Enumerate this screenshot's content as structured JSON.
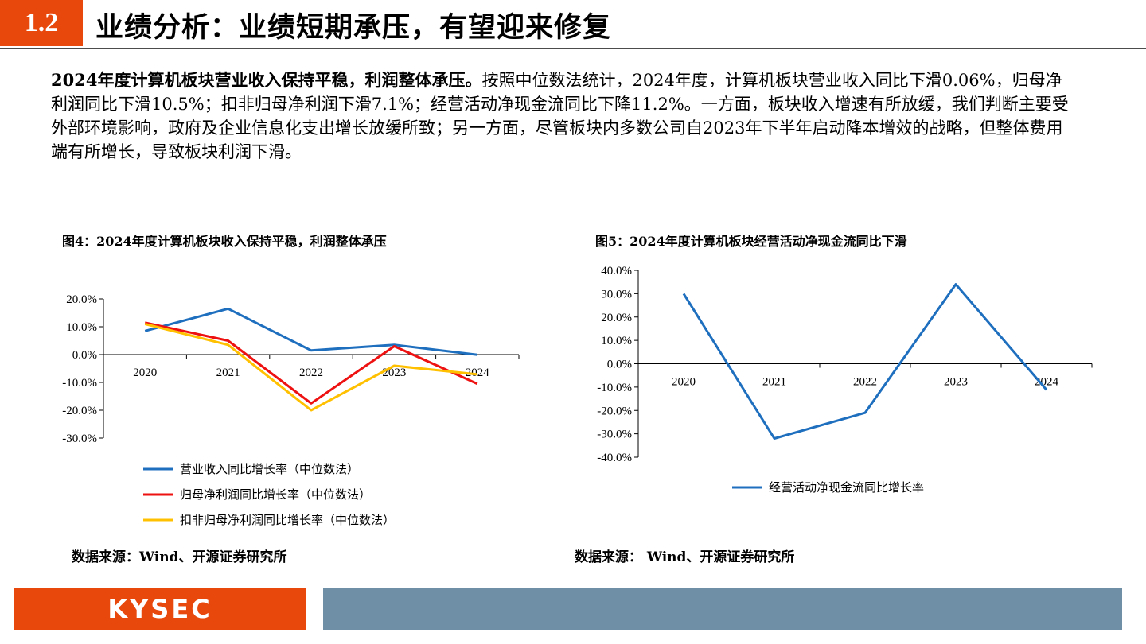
{
  "header": {
    "section_number": "1.2",
    "title": "业绩分析：业绩短期承压，有望迎来修复"
  },
  "summary": {
    "bold": "2024年度计算机板块营业收入保持平稳，利润整体承压。",
    "text": "按照中位数法统计，2024年度，计算机板块营业收入同比下滑0.06%，归母净利润同比下滑10.5%；扣非归母净利润下滑7.1%；经营活动净现金流同比下降11.2%。一方面，板块收入增速有所放缓，我们判断主要受外部环境影响，政府及企业信息化支出增长放缓所致；另一方面，尽管板块内多数公司自2023年下半年启动降本增效的战略，但整体费用端有所增长，导致板块利润下滑。"
  },
  "figures": {
    "fig4_title": "图4：2024年度计算机板块收入保持平稳，利润整体承压",
    "fig5_title": "图5：2024年度计算机板块经营活动净现金流同比下滑",
    "source_left": "数据来源：Wind、开源证券研究所",
    "source_right": "数据来源： Wind、开源证券研究所"
  },
  "footer": {
    "logo_text": "KYSEC"
  },
  "colors": {
    "accent": "#e8480c",
    "footer_blue": "#6f8fa6",
    "blue": "#1f6fbf",
    "red": "#ee1111",
    "yellow": "#ffc000"
  },
  "chart_data": [
    {
      "type": "line",
      "categories": [
        "2020",
        "2021",
        "2022",
        "2023",
        "2024"
      ],
      "yticks": [
        "20.0%",
        "10.0%",
        "0.0%",
        "-10.0%",
        "-20.0%",
        "-30.0%"
      ],
      "ylim": [
        -30,
        20
      ],
      "series": [
        {
          "name": "营业收入同比增长率（中位数法）",
          "color": "#1f6fbf",
          "values": [
            8.5,
            16.5,
            1.5,
            3.5,
            -0.06
          ]
        },
        {
          "name": "归母净利润同比增长率（中位数法）",
          "color": "#ee1111",
          "values": [
            11.5,
            5,
            -17.5,
            3,
            -10.5
          ]
        },
        {
          "name": "扣非归母净利润同比增长率（中位数法）",
          "color": "#ffc000",
          "values": [
            11,
            3.5,
            -20,
            -4,
            -7.1
          ]
        }
      ],
      "legend": "bottom"
    },
    {
      "type": "line",
      "categories": [
        "2020",
        "2021",
        "2022",
        "2023",
        "2024"
      ],
      "yticks": [
        "40.0%",
        "30.0%",
        "20.0%",
        "10.0%",
        "0.0%",
        "-10.0%",
        "-20.0%",
        "-30.0%",
        "-40.0%"
      ],
      "ylim": [
        -40,
        40
      ],
      "series": [
        {
          "name": "经营活动净现金流同比增长率",
          "color": "#1f6fbf",
          "values": [
            30,
            -32,
            -21,
            34,
            -11.2
          ]
        }
      ],
      "legend": "bottom"
    }
  ]
}
